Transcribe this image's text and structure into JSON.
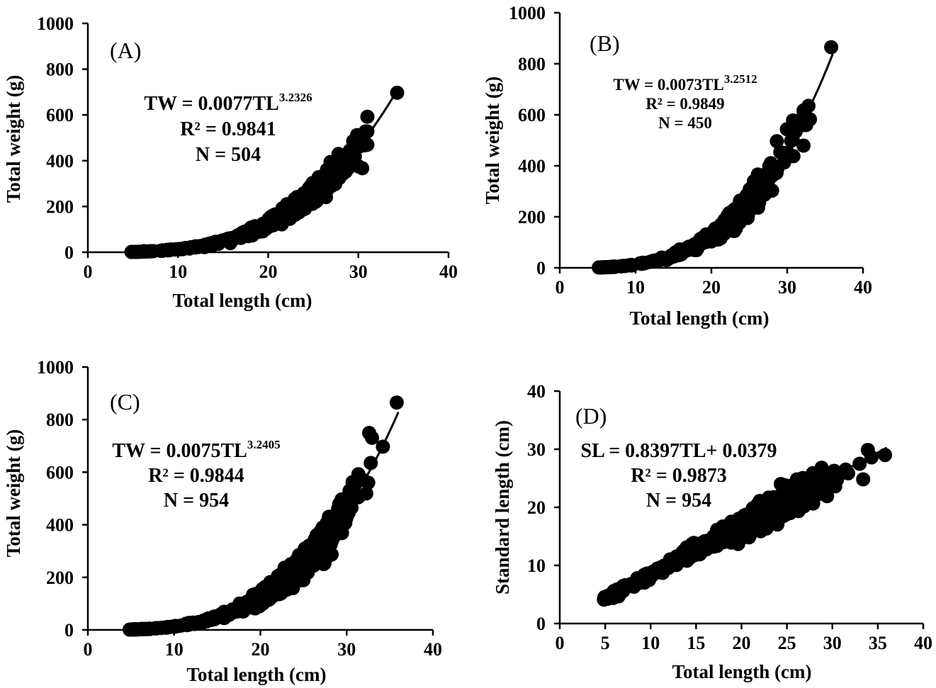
{
  "chart_data": [
    {
      "type": "scatter",
      "panel": "(A)",
      "xlabel": "Total length (cm)",
      "ylabel": "Total weight (g)",
      "xlim": [
        0,
        40
      ],
      "ylim": [
        0,
        1000
      ],
      "xticks": [
        0,
        10,
        20,
        30,
        40
      ],
      "yticks": [
        0,
        200,
        400,
        600,
        800,
        1000
      ],
      "fit": {
        "kind": "power",
        "a": 0.0077,
        "b": 3.2326,
        "x_range": [
          4.8,
          34.3
        ]
      },
      "equation": {
        "lhs": "TW = 0.0077TL",
        "exponent": "3.2326",
        "r2": "R² = 0.9841",
        "n": "N = 504"
      },
      "sampling": {
        "n_points": 504,
        "x_range": [
          4.8,
          31
        ],
        "noise": 0.09,
        "seed": 11
      },
      "extra_points": [
        [
          34.3,
          697
        ],
        [
          30.8,
          528
        ],
        [
          31,
          470
        ],
        [
          6.2,
          5
        ],
        [
          15.8,
          40
        ],
        [
          18.3,
          95
        ]
      ]
    },
    {
      "type": "scatter",
      "panel": "(B)",
      "xlabel": "Total length (cm)",
      "ylabel": "Total weight (g)",
      "xlim": [
        0,
        40
      ],
      "ylim": [
        0,
        1000
      ],
      "xticks": [
        0,
        10,
        20,
        30,
        40
      ],
      "yticks": [
        0,
        200,
        400,
        600,
        800,
        1000
      ],
      "fit": {
        "kind": "power",
        "a": 0.0073,
        "b": 3.2512,
        "x_range": [
          5,
          36
        ]
      },
      "equation": {
        "lhs": "TW = 0.0073TL",
        "exponent": "3.2512",
        "r2": "R² = 0.9849",
        "n": "N = 450"
      },
      "sampling": {
        "n_points": 450,
        "x_range": [
          5,
          33
        ],
        "noise": 0.09,
        "seed": 23
      },
      "extra_points": [
        [
          35.8,
          865
        ],
        [
          32.8,
          635
        ],
        [
          32.5,
          560
        ],
        [
          16,
          52
        ],
        [
          28,
          395
        ]
      ]
    },
    {
      "type": "scatter",
      "panel": "(C)",
      "xlabel": "Total length (cm)",
      "ylabel": "Total weight (g)",
      "xlim": [
        0,
        40
      ],
      "ylim": [
        0,
        1000
      ],
      "xticks": [
        0,
        10,
        20,
        30,
        40
      ],
      "yticks": [
        0,
        200,
        400,
        600,
        800,
        1000
      ],
      "fit": {
        "kind": "power",
        "a": 0.0075,
        "b": 3.2405,
        "x_range": [
          4.8,
          36
        ]
      },
      "equation": {
        "lhs": "TW = 0.0075TL",
        "exponent": "3.2405",
        "r2": "R² = 0.9844",
        "n": "N = 954"
      },
      "sampling": {
        "n_points": 954,
        "x_range": [
          4.8,
          33
        ],
        "noise": 0.09,
        "seed": 37
      },
      "extra_points": [
        [
          35.8,
          865
        ],
        [
          34.2,
          697
        ],
        [
          32.8,
          635
        ],
        [
          32.5,
          560
        ],
        [
          15.8,
          45
        ],
        [
          18.3,
          95
        ]
      ]
    },
    {
      "type": "scatter",
      "panel": "(D)",
      "xlabel": "Total length (cm)",
      "ylabel": "Standard length (cm)",
      "xlim": [
        0,
        40
      ],
      "ylim": [
        0,
        40
      ],
      "xticks": [
        0,
        5,
        10,
        15,
        20,
        25,
        30,
        35,
        40
      ],
      "yticks": [
        0,
        10,
        20,
        30,
        40
      ],
      "fit": {
        "kind": "linear",
        "a": 0.8397,
        "b": 0.0379,
        "x_range": [
          4.8,
          36
        ]
      },
      "equation": {
        "lhs": "SL = 0.8397TL+ 0.0379",
        "exponent": "",
        "r2": "R² = 0.9873",
        "n": "N = 954"
      },
      "sampling": {
        "n_points": 954,
        "x_range": [
          4.8,
          34
        ],
        "noise": 0.05,
        "seed": 53
      },
      "extra_points": [
        [
          35.8,
          29
        ],
        [
          34.3,
          28.6
        ],
        [
          33,
          27.5
        ],
        [
          7,
          6.5
        ],
        [
          14,
          10.8
        ]
      ]
    }
  ]
}
